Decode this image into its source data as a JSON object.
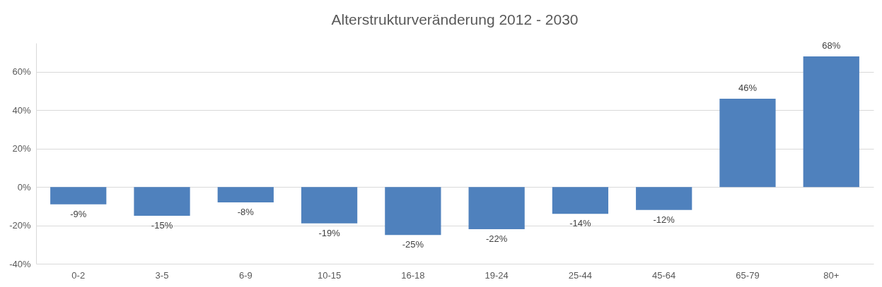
{
  "chart_data": {
    "type": "bar",
    "title": "Alterstrukturveränderung 2012 - 2030",
    "categories": [
      "0-2",
      "3-5",
      "6-9",
      "10-15",
      "16-18",
      "19-24",
      "25-44",
      "45-64",
      "65-79",
      "80+"
    ],
    "series": [
      {
        "color": "#4f81bd",
        "values": [
          -9,
          -15,
          -8,
          -19,
          -25,
          -22,
          -14,
          -12,
          46,
          68
        ],
        "value_labels": [
          "-9%",
          "-15%",
          "-8%",
          "-19%",
          "-25%",
          "-22%",
          "-14%",
          "-12%",
          "46%",
          "68%"
        ]
      }
    ],
    "ylim": [
      -40,
      75
    ],
    "yticks": [
      {
        "value": -40,
        "label": "-40%"
      },
      {
        "value": -20,
        "label": "-20%"
      },
      {
        "value": 0,
        "label": "0%"
      },
      {
        "value": 20,
        "label": "20%"
      },
      {
        "value": 40,
        "label": "40%"
      },
      {
        "value": 60,
        "label": "60%"
      }
    ],
    "grid": "y"
  }
}
